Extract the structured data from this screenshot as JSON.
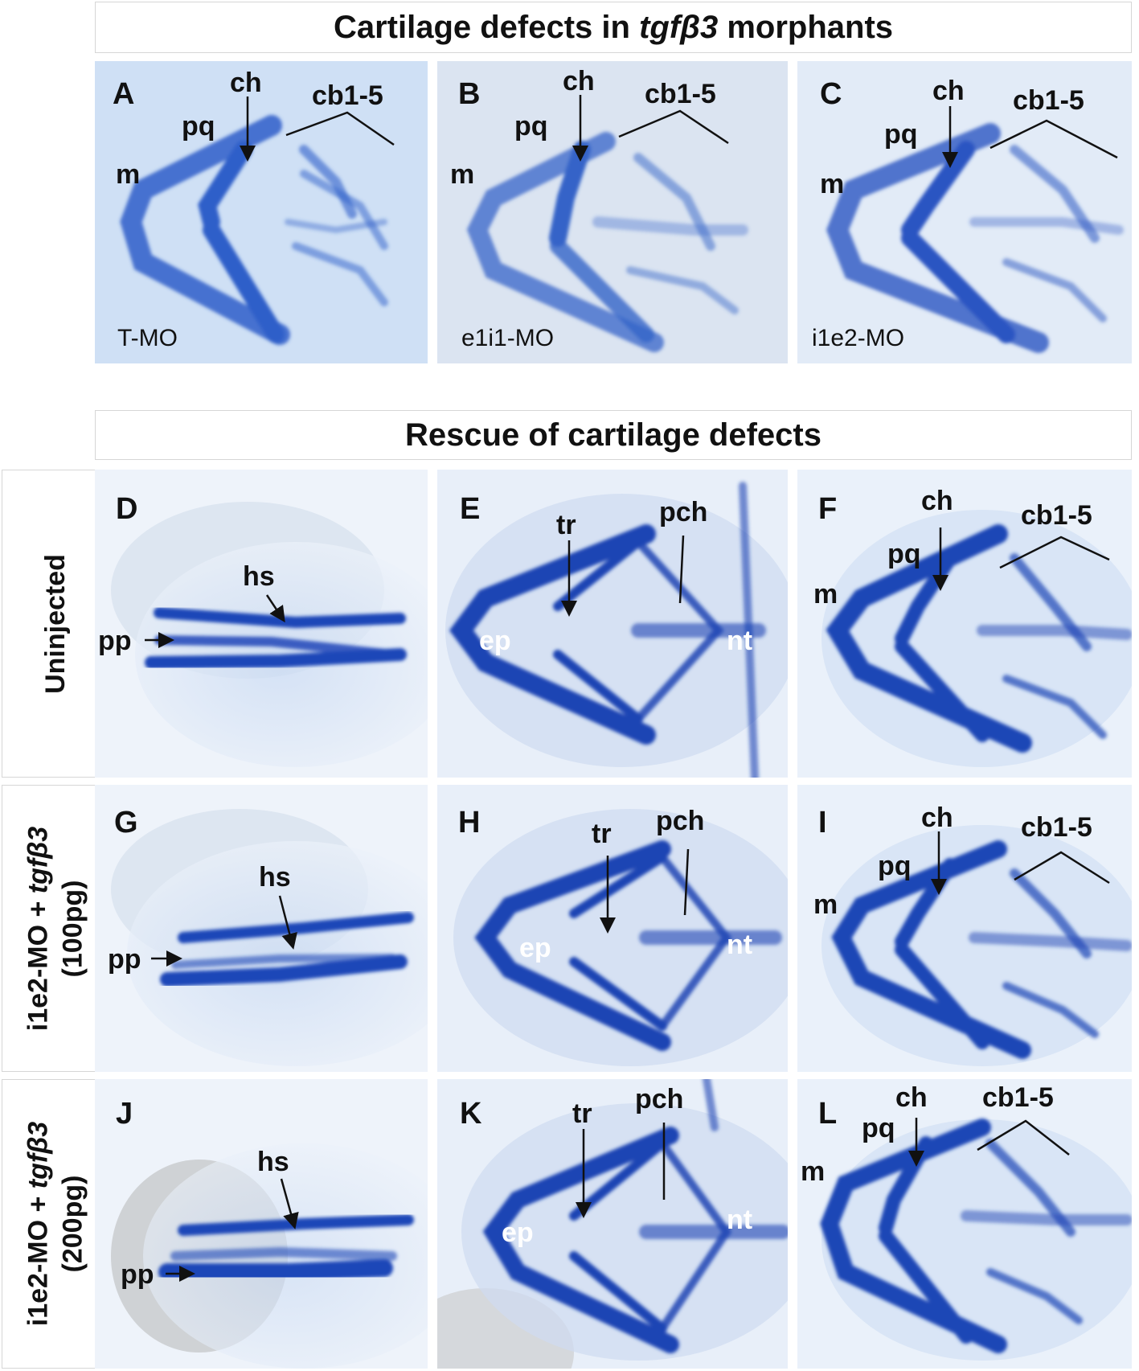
{
  "header1": {
    "pre": "Cartilage defects in ",
    "ital": "tgfβ3",
    "post": " morphants"
  },
  "header2": {
    "text": "Rescue of cartilage defects"
  },
  "rows": [
    {
      "label": "Uninjected"
    },
    {
      "pre": "i1e2-MO + ",
      "ital": "tgfβ3",
      "dose": "(100pg)"
    },
    {
      "pre": "i1e2-MO + ",
      "ital": "tgfβ3",
      "dose": "(200pg)"
    }
  ],
  "panels": [
    {
      "letter": "A",
      "m": "m",
      "pq": "pq",
      "ch": "ch",
      "cb": "cb1-5",
      "cond": "T-MO"
    },
    {
      "letter": "B",
      "m": "m",
      "pq": "pq",
      "ch": "ch",
      "cb": "cb1-5",
      "cond": "e1i1-MO"
    },
    {
      "letter": "C",
      "m": "m",
      "pq": "pq",
      "ch": "ch",
      "cb": "cb1-5",
      "cond": "i1e2-MO"
    },
    {
      "letter": "D",
      "hs": "hs",
      "pp": "pp"
    },
    {
      "letter": "E",
      "tr": "tr",
      "pch": "pch",
      "ep": "ep",
      "nt": "nt"
    },
    {
      "letter": "F",
      "m": "m",
      "pq": "pq",
      "ch": "ch",
      "cb": "cb1-5"
    },
    {
      "letter": "G",
      "hs": "hs",
      "pp": "pp"
    },
    {
      "letter": "H",
      "tr": "tr",
      "pch": "pch",
      "ep": "ep",
      "nt": "nt"
    },
    {
      "letter": "I",
      "m": "m",
      "pq": "pq",
      "ch": "ch",
      "cb": "cb1-5"
    },
    {
      "letter": "J",
      "hs": "hs",
      "pp": "pp"
    },
    {
      "letter": "K",
      "tr": "tr",
      "pch": "pch",
      "ep": "ep",
      "nt": "nt"
    },
    {
      "letter": "L",
      "m": "m",
      "pq": "pq",
      "ch": "ch",
      "cb": "cb1-5"
    }
  ],
  "colors": {
    "stain": "#2d5ec9",
    "stain_dark": "#1c3fae",
    "stain_light": "#9bbbe8",
    "background": "#eef3fa"
  }
}
